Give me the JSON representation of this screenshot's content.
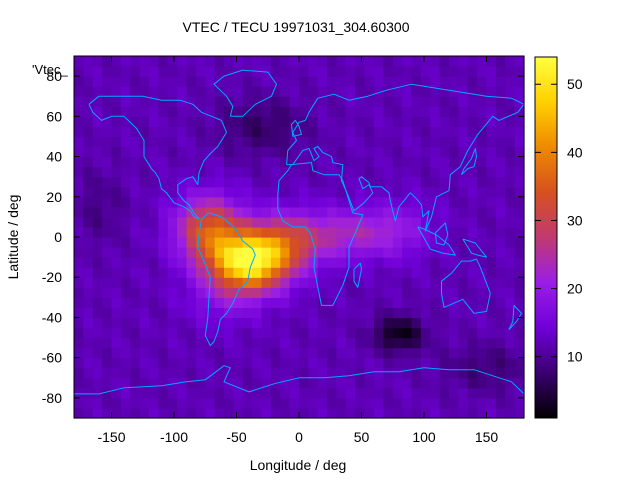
{
  "chart_data": {
    "type": "heatmap",
    "title": "VTEC / TECU 19971031_304.60300",
    "xlabel": "Longitude / deg",
    "ylabel": "Latitude / deg",
    "key_label": "'Vtec_",
    "xlim": [
      -180,
      180
    ],
    "ylim": [
      -90,
      90
    ],
    "x_ticks": [
      -150,
      -100,
      -50,
      0,
      50,
      100,
      150
    ],
    "y_ticks": [
      -80,
      -60,
      -40,
      -20,
      0,
      20,
      40,
      60,
      80
    ],
    "colorbar": {
      "range": [
        1,
        54
      ],
      "ticks": [
        10,
        20,
        30,
        40,
        50
      ],
      "palette": [
        "#000000",
        "#3a0070",
        "#7000d8",
        "#9a1ee6",
        "#c03a70",
        "#d65020",
        "#ee8a00",
        "#ffd000",
        "#ffff40"
      ]
    },
    "grid": {
      "lon_step": 7.5,
      "lat_step": 5
    },
    "background_level": 12,
    "features": [
      {
        "name": "equatorial-anomaly-peak",
        "lon": -40,
        "lat": -12,
        "value": 52
      },
      {
        "name": "anomaly-north-crest",
        "lon": -72,
        "lat": 4,
        "value": 40
      },
      {
        "name": "anomaly-east-extension",
        "lon": 5,
        "lat": -5,
        "value": 28
      },
      {
        "name": "south-indian-ocean-minimum",
        "lon": 80,
        "lat": -48,
        "value": 2
      },
      {
        "name": "north-atlantic-low",
        "lon": -30,
        "lat": 55,
        "value": 7
      },
      {
        "name": "indian-ocean-enhancement",
        "lon": 80,
        "lat": 5,
        "value": 18
      }
    ],
    "overlay": "coastlines",
    "overlay_color": "#00a8ff"
  }
}
